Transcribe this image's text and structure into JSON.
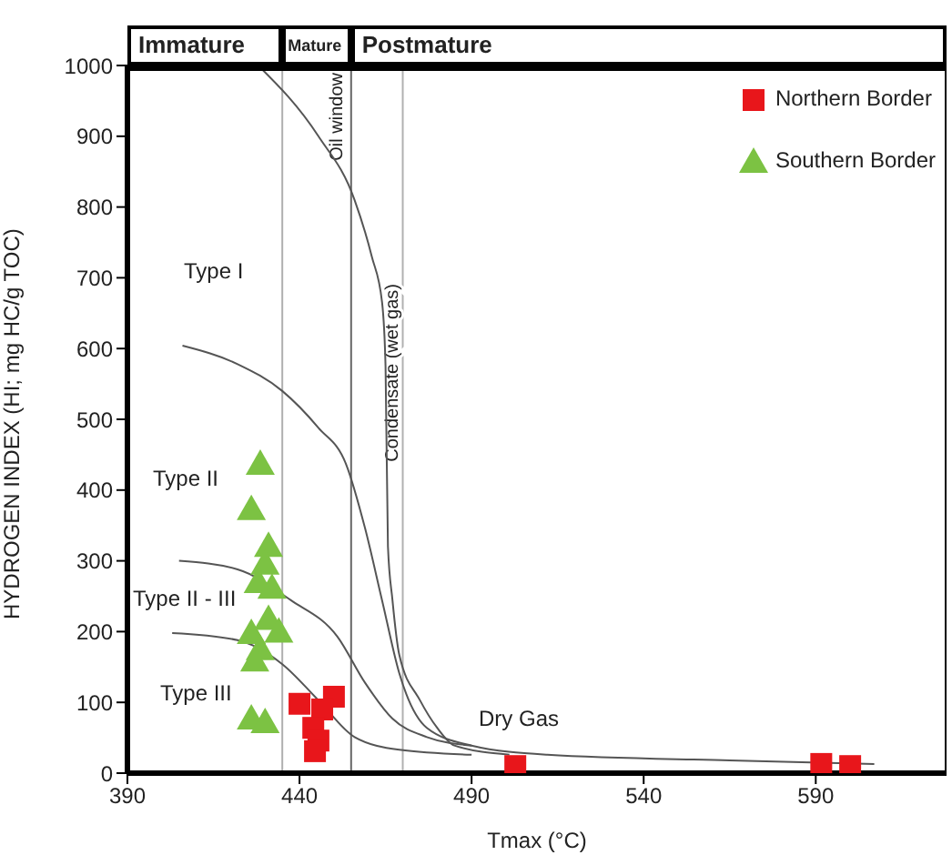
{
  "chart_data": {
    "type": "scatter",
    "xlabel": "Tmax (°C)",
    "ylabel": "HYDROGEN INDEX (HI; mg HC/g TOC)",
    "xlim": [
      390,
      628
    ],
    "xticks": [
      390,
      440,
      490,
      540,
      590
    ],
    "ylim": [
      0,
      1000
    ],
    "yticks": [
      0,
      100,
      200,
      300,
      400,
      500,
      600,
      700,
      800,
      900,
      1000
    ],
    "grid": false,
    "legend": "top right",
    "series": [
      {
        "type": "line",
        "color": "#555555",
        "marker": "none",
        "x": [
          428,
          445.5,
          456,
          461,
          464,
          465,
          465.7,
          467,
          469,
          475,
          480,
          485,
          501
        ],
        "values": [
          1000,
          900,
          810,
          730,
          665,
          575,
          320,
          245,
          167,
          103,
          64,
          39,
          26
        ]
      },
      {
        "type": "line",
        "color": "#555555",
        "marker": "none",
        "x": [
          406,
          422,
          435,
          445.5,
          453.5,
          459,
          464,
          469,
          477,
          490,
          512,
          565,
          607
        ],
        "values": [
          604,
          578,
          540,
          488,
          437,
          347,
          244,
          141,
          64,
          39,
          26,
          18,
          13
        ]
      },
      {
        "type": "line",
        "color": "#555555",
        "marker": "none",
        "x": [
          405,
          422,
          437.6,
          451,
          459,
          467,
          477,
          490
        ],
        "values": [
          300,
          288,
          244,
          193,
          128,
          77,
          51,
          39
        ]
      },
      {
        "type": "line",
        "color": "#555555",
        "marker": "none",
        "x": [
          403,
          422,
          435,
          445.5,
          456,
          469,
          490
        ],
        "values": [
          198,
          188,
          154,
          103,
          51,
          33,
          26
        ]
      },
      {
        "name": "Northern Border",
        "color": "#e8161b",
        "marker": "square",
        "x": [
          440,
          450,
          446.6,
          444,
          445.5,
          444.5,
          502.7,
          591.6,
          600
        ],
        "values": [
          98,
          108,
          90,
          64,
          46,
          31,
          10,
          13,
          10
        ]
      },
      {
        "name": "Southern Border",
        "color": "#7cc243",
        "marker": "triangle",
        "x": [
          428.6,
          426,
          431,
          430,
          432,
          428,
          431,
          434,
          426,
          428.6,
          427,
          426,
          430
        ],
        "values": [
          437,
          373,
          321,
          296,
          262,
          270,
          218,
          200,
          198,
          175,
          159,
          77,
          72
        ]
      }
    ],
    "ref_lines": [
      {
        "axis": "x",
        "value": 435,
        "color": "#b0b0b0"
      },
      {
        "axis": "x",
        "value": 455,
        "label": "Oil window",
        "color": "#666666"
      },
      {
        "axis": "x",
        "value": 470,
        "label": "Condensate (wet gas)",
        "color": "#b0b0b0"
      }
    ],
    "annotations": [
      "Immature",
      "Mature",
      "Postmature",
      "Type I",
      "Type II",
      "Type II - III",
      "Type III",
      "Dry Gas"
    ]
  }
}
